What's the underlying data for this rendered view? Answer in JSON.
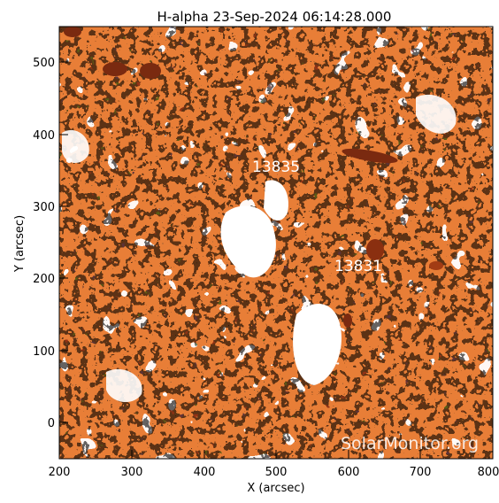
{
  "title": "H-alpha 23-Sep-2024 06:14:28.000",
  "x_label": "X (arcsec)",
  "y_label": "Y (arcsec)",
  "x_ticks": [
    "200",
    "300",
    "400",
    "500",
    "600",
    "700",
    "800"
  ],
  "y_ticks": [
    "0",
    "100",
    "200",
    "300",
    "400",
    "500"
  ],
  "regions": [
    {
      "label": "13835"
    },
    {
      "label": "13831"
    }
  ],
  "watermark": "SolarMonitor.org",
  "colors": {
    "background": "#ffffff",
    "image_base": "#f08a3e",
    "image_dark": "#7a2a10",
    "speckle": "#1a0e08",
    "plage": "#ffffff"
  }
}
